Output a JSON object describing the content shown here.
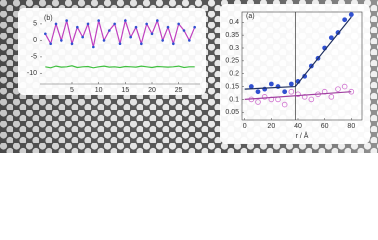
{
  "chart_data": [
    {
      "type": "line",
      "panel_label": "(b)",
      "x": [
        0,
        1,
        2,
        3,
        4,
        5,
        6,
        7,
        8,
        9,
        10,
        11,
        12,
        13,
        14,
        15,
        16,
        17,
        18,
        19,
        20,
        21,
        22,
        23,
        24,
        25,
        26,
        27,
        28
      ],
      "xlim": [
        -1,
        29
      ],
      "ylim": [
        -12,
        8
      ],
      "xticks": [
        5,
        10,
        15,
        20,
        25
      ],
      "yticks": [
        5,
        0,
        -5,
        -10
      ],
      "series": [
        {
          "color": "#c040c0",
          "marker_color": "#3050d0",
          "mode": "line+markers",
          "values": [
            2,
            -1,
            5,
            0,
            6,
            -1,
            4,
            1,
            5,
            -2,
            6,
            0,
            3,
            5,
            -1,
            6,
            1,
            4,
            -1,
            5,
            2,
            6,
            0,
            4,
            -1,
            5,
            3,
            0,
            4
          ]
        },
        {
          "color": "#40c040",
          "mode": "line",
          "values": [
            -8,
            -8.3,
            -7.8,
            -8.1,
            -8,
            -7.7,
            -8.2,
            -8,
            -7.9,
            -8.3,
            -8,
            -7.8,
            -8.1,
            -8,
            -8.2,
            -7.9,
            -8,
            -8.1,
            -7.8,
            -8,
            -8.2,
            -7.9,
            -8,
            -8.1,
            -8,
            -7.8,
            -8.2,
            -8,
            -8
          ]
        }
      ]
    },
    {
      "type": "scatter",
      "panel_label": "(a)",
      "x_label": "r / Å",
      "xlim": [
        -2,
        88
      ],
      "ylim": [
        0.02,
        0.44
      ],
      "xticks": [
        0,
        20,
        40,
        60,
        80
      ],
      "yticks": [
        0.05,
        0.1,
        0.15,
        0.2,
        0.25,
        0.3,
        0.35,
        0.4
      ],
      "vline": 38,
      "series": [
        {
          "color": "#3050d0",
          "mode": "markers",
          "x": [
            5,
            10,
            15,
            20,
            25,
            30,
            35,
            40,
            45,
            50,
            55,
            60,
            65,
            70,
            75,
            80
          ],
          "values": [
            0.15,
            0.13,
            0.14,
            0.16,
            0.15,
            0.13,
            0.16,
            0.17,
            0.19,
            0.23,
            0.26,
            0.3,
            0.34,
            0.36,
            0.41,
            0.43
          ]
        },
        {
          "color": "#d070d0",
          "mode": "open",
          "x": [
            5,
            10,
            15,
            20,
            25,
            30,
            35,
            40,
            45,
            50,
            55,
            60,
            65,
            70,
            75,
            80
          ],
          "values": [
            0.1,
            0.09,
            0.11,
            0.1,
            0.1,
            0.08,
            0.13,
            0.12,
            0.11,
            0.1,
            0.12,
            0.13,
            0.11,
            0.14,
            0.15,
            0.13
          ]
        },
        {
          "color": "#203060",
          "mode": "line",
          "x": [
            0,
            38,
            80
          ],
          "values": [
            0.14,
            0.15,
            0.42
          ]
        },
        {
          "color": "#a040a0",
          "mode": "line",
          "x": [
            0,
            80
          ],
          "values": [
            0.1,
            0.13
          ]
        }
      ]
    }
  ]
}
